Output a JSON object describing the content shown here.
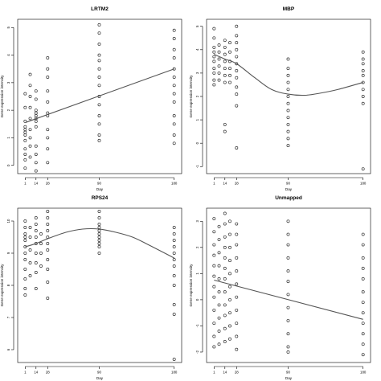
{
  "chart_data": [
    {
      "type": "scatter",
      "title": "LRTM2",
      "xlabel": "Day",
      "ylabel": "Gene expression intensity",
      "x_ticks": [
        1,
        14,
        28,
        90,
        180
      ],
      "y_ticks": [
        0,
        1,
        2,
        3,
        4,
        5
      ],
      "ylim": [
        -0.3,
        5.3
      ],
      "fit": "linear",
      "fit_points": [
        [
          1,
          1.55
        ],
        [
          180,
          3.5
        ]
      ],
      "points": [
        [
          1,
          2.6
        ],
        [
          1,
          2.1
        ],
        [
          1,
          1.6
        ],
        [
          1,
          1.4
        ],
        [
          1,
          1.3
        ],
        [
          1,
          1.2
        ],
        [
          1,
          1.1
        ],
        [
          1,
          0.9
        ],
        [
          1,
          0.6
        ],
        [
          1,
          0.4
        ],
        [
          1,
          0.2
        ],
        [
          1,
          -0.1
        ],
        [
          7,
          3.3
        ],
        [
          7,
          2.9
        ],
        [
          7,
          2.5
        ],
        [
          7,
          2.1
        ],
        [
          7,
          1.7
        ],
        [
          7,
          1.3
        ],
        [
          7,
          1.0
        ],
        [
          7,
          0.7
        ],
        [
          7,
          0.3
        ],
        [
          14,
          2.7
        ],
        [
          14,
          2.4
        ],
        [
          14,
          2.0
        ],
        [
          14,
          1.9
        ],
        [
          14,
          1.8
        ],
        [
          14,
          1.7
        ],
        [
          14,
          1.6
        ],
        [
          14,
          1.4
        ],
        [
          14,
          0.7
        ],
        [
          14,
          0.4
        ],
        [
          14,
          0.1
        ],
        [
          14,
          -0.2
        ],
        [
          28,
          3.9
        ],
        [
          28,
          3.5
        ],
        [
          28,
          3.2
        ],
        [
          28,
          2.7
        ],
        [
          28,
          2.3
        ],
        [
          28,
          1.9
        ],
        [
          28,
          1.8
        ],
        [
          28,
          1.3
        ],
        [
          28,
          1.0
        ],
        [
          28,
          0.6
        ],
        [
          28,
          0.1
        ],
        [
          90,
          5.1
        ],
        [
          90,
          4.8
        ],
        [
          90,
          4.4
        ],
        [
          90,
          4.0
        ],
        [
          90,
          3.8
        ],
        [
          90,
          3.5
        ],
        [
          90,
          3.2
        ],
        [
          90,
          2.9
        ],
        [
          90,
          2.5
        ],
        [
          90,
          2.2
        ],
        [
          90,
          1.8
        ],
        [
          90,
          1.5
        ],
        [
          90,
          1.1
        ],
        [
          90,
          0.9
        ],
        [
          180,
          4.9
        ],
        [
          180,
          4.6
        ],
        [
          180,
          4.2
        ],
        [
          180,
          3.9
        ],
        [
          180,
          3.5
        ],
        [
          180,
          3.2
        ],
        [
          180,
          2.9
        ],
        [
          180,
          2.6
        ],
        [
          180,
          2.3
        ],
        [
          180,
          1.8
        ],
        [
          180,
          1.5
        ],
        [
          180,
          1.1
        ],
        [
          180,
          0.8
        ]
      ]
    },
    {
      "type": "scatter",
      "title": "MBP",
      "xlabel": "Day",
      "ylabel": "Gene expression intensity",
      "x_ticks": [
        1,
        14,
        28,
        90,
        180
      ],
      "y_ticks": [
        -1,
        0,
        1,
        2,
        3,
        4,
        5
      ],
      "ylim": [
        -1.3,
        5.3
      ],
      "fit": "curve",
      "fit_points": [
        [
          1,
          3.8
        ],
        [
          14,
          3.6
        ],
        [
          28,
          3.4
        ],
        [
          50,
          2.8
        ],
        [
          70,
          2.3
        ],
        [
          90,
          2.1
        ],
        [
          110,
          2.05
        ],
        [
          130,
          2.15
        ],
        [
          150,
          2.3
        ],
        [
          180,
          2.6
        ]
      ],
      "points": [
        [
          1,
          4.9
        ],
        [
          1,
          4.5
        ],
        [
          1,
          4.1
        ],
        [
          1,
          3.9
        ],
        [
          1,
          3.7
        ],
        [
          1,
          3.5
        ],
        [
          1,
          3.2
        ],
        [
          1,
          3.0
        ],
        [
          1,
          2.7
        ],
        [
          1,
          2.5
        ],
        [
          7,
          4.2
        ],
        [
          7,
          3.9
        ],
        [
          7,
          3.6
        ],
        [
          7,
          3.3
        ],
        [
          7,
          3.0
        ],
        [
          7,
          2.7
        ],
        [
          14,
          4.4
        ],
        [
          14,
          4.1
        ],
        [
          14,
          3.8
        ],
        [
          14,
          3.5
        ],
        [
          14,
          3.2
        ],
        [
          14,
          2.9
        ],
        [
          14,
          2.6
        ],
        [
          14,
          0.8
        ],
        [
          14,
          0.5
        ],
        [
          20,
          4.3
        ],
        [
          20,
          3.9
        ],
        [
          20,
          3.5
        ],
        [
          20,
          3.2
        ],
        [
          20,
          2.9
        ],
        [
          20,
          2.6
        ],
        [
          28,
          5.0
        ],
        [
          28,
          4.6
        ],
        [
          28,
          4.3
        ],
        [
          28,
          4.0
        ],
        [
          28,
          3.7
        ],
        [
          28,
          3.4
        ],
        [
          28,
          3.1
        ],
        [
          28,
          2.8
        ],
        [
          28,
          2.4
        ],
        [
          28,
          2.1
        ],
        [
          28,
          1.6
        ],
        [
          28,
          -0.2
        ],
        [
          90,
          3.6
        ],
        [
          90,
          3.2
        ],
        [
          90,
          2.9
        ],
        [
          90,
          2.6
        ],
        [
          90,
          2.3
        ],
        [
          90,
          2.0
        ],
        [
          90,
          1.7
        ],
        [
          90,
          1.4
        ],
        [
          90,
          1.1
        ],
        [
          90,
          0.8
        ],
        [
          90,
          0.5
        ],
        [
          90,
          0.2
        ],
        [
          90,
          -0.1
        ],
        [
          180,
          3.9
        ],
        [
          180,
          3.6
        ],
        [
          180,
          3.4
        ],
        [
          180,
          3.1
        ],
        [
          180,
          2.9
        ],
        [
          180,
          2.6
        ],
        [
          180,
          2.3
        ],
        [
          180,
          2.0
        ],
        [
          180,
          1.7
        ],
        [
          180,
          -1.1
        ]
      ]
    },
    {
      "type": "scatter",
      "title": "RPS24",
      "xlabel": "Day",
      "ylabel": "Gene expression intensity",
      "x_ticks": [
        1,
        14,
        28,
        90,
        180
      ],
      "y_ticks": [
        6,
        7,
        8,
        9,
        10
      ],
      "ylim": [
        5.6,
        10.4
      ],
      "fit": "curve",
      "fit_points": [
        [
          1,
          9.2
        ],
        [
          14,
          9.3
        ],
        [
          28,
          9.45
        ],
        [
          50,
          9.65
        ],
        [
          70,
          9.75
        ],
        [
          90,
          9.75
        ],
        [
          110,
          9.65
        ],
        [
          130,
          9.5
        ],
        [
          150,
          9.25
        ],
        [
          180,
          8.85
        ]
      ],
      "points": [
        [
          1,
          10.0
        ],
        [
          1,
          9.8
        ],
        [
          1,
          9.6
        ],
        [
          1,
          9.5
        ],
        [
          1,
          9.4
        ],
        [
          1,
          9.2
        ],
        [
          1,
          9.0
        ],
        [
          1,
          8.8
        ],
        [
          1,
          8.5
        ],
        [
          1,
          8.2
        ],
        [
          1,
          7.9
        ],
        [
          1,
          7.7
        ],
        [
          7,
          9.8
        ],
        [
          7,
          9.5
        ],
        [
          7,
          9.1
        ],
        [
          7,
          8.7
        ],
        [
          7,
          8.3
        ],
        [
          14,
          10.1
        ],
        [
          14,
          9.9
        ],
        [
          14,
          9.7
        ],
        [
          14,
          9.5
        ],
        [
          14,
          9.3
        ],
        [
          14,
          9.0
        ],
        [
          14,
          8.7
        ],
        [
          14,
          8.4
        ],
        [
          14,
          7.9
        ],
        [
          20,
          9.6
        ],
        [
          20,
          9.3
        ],
        [
          20,
          9.0
        ],
        [
          20,
          8.6
        ],
        [
          28,
          10.3
        ],
        [
          28,
          10.1
        ],
        [
          28,
          9.9
        ],
        [
          28,
          9.7
        ],
        [
          28,
          9.5
        ],
        [
          28,
          9.3
        ],
        [
          28,
          9.1
        ],
        [
          28,
          8.8
        ],
        [
          28,
          8.5
        ],
        [
          28,
          8.1
        ],
        [
          28,
          7.6
        ],
        [
          90,
          10.3
        ],
        [
          90,
          10.1
        ],
        [
          90,
          9.9
        ],
        [
          90,
          9.8
        ],
        [
          90,
          9.7
        ],
        [
          90,
          9.6
        ],
        [
          90,
          9.5
        ],
        [
          90,
          9.4
        ],
        [
          90,
          9.3
        ],
        [
          90,
          9.2
        ],
        [
          90,
          9.0
        ],
        [
          180,
          9.8
        ],
        [
          180,
          9.6
        ],
        [
          180,
          9.4
        ],
        [
          180,
          9.2
        ],
        [
          180,
          9.0
        ],
        [
          180,
          8.8
        ],
        [
          180,
          8.6
        ],
        [
          180,
          8.3
        ],
        [
          180,
          8.0
        ],
        [
          180,
          7.4
        ],
        [
          180,
          7.1
        ],
        [
          180,
          5.7
        ]
      ]
    },
    {
      "type": "scatter",
      "title": "Unmapped",
      "xlabel": "Day",
      "ylabel": "Gene expression intensity",
      "x_ticks": [
        1,
        14,
        28,
        90,
        180
      ],
      "y_ticks": [
        -2,
        -1,
        0,
        1,
        2,
        3
      ],
      "ylim": [
        -2.4,
        3.5
      ],
      "fit": "linear",
      "fit_points": [
        [
          1,
          0.75
        ],
        [
          180,
          -0.75
        ]
      ],
      "points": [
        [
          1,
          3.1
        ],
        [
          1,
          2.6
        ],
        [
          1,
          2.1
        ],
        [
          1,
          1.7
        ],
        [
          1,
          1.3
        ],
        [
          1,
          0.9
        ],
        [
          1,
          0.5
        ],
        [
          1,
          0.1
        ],
        [
          1,
          -0.4
        ],
        [
          1,
          -0.9
        ],
        [
          1,
          -1.4
        ],
        [
          1,
          -1.8
        ],
        [
          7,
          2.8
        ],
        [
          7,
          2.3
        ],
        [
          7,
          1.8
        ],
        [
          7,
          1.3
        ],
        [
          7,
          0.8
        ],
        [
          7,
          0.3
        ],
        [
          7,
          -0.2
        ],
        [
          7,
          -0.7
        ],
        [
          7,
          -1.2
        ],
        [
          7,
          -1.7
        ],
        [
          14,
          3.3
        ],
        [
          14,
          2.9
        ],
        [
          14,
          2.4
        ],
        [
          14,
          2.0
        ],
        [
          14,
          1.6
        ],
        [
          14,
          1.2
        ],
        [
          14,
          0.8
        ],
        [
          14,
          0.3
        ],
        [
          14,
          -0.2
        ],
        [
          14,
          -0.6
        ],
        [
          14,
          -1.1
        ],
        [
          14,
          -1.6
        ],
        [
          20,
          3.0
        ],
        [
          20,
          2.5
        ],
        [
          20,
          2.0
        ],
        [
          20,
          1.5
        ],
        [
          20,
          1.0
        ],
        [
          20,
          0.5
        ],
        [
          20,
          0.0
        ],
        [
          20,
          -0.5
        ],
        [
          20,
          -1.0
        ],
        [
          20,
          -1.5
        ],
        [
          28,
          2.9
        ],
        [
          28,
          2.5
        ],
        [
          28,
          2.1
        ],
        [
          28,
          1.6
        ],
        [
          28,
          1.1
        ],
        [
          28,
          0.6
        ],
        [
          28,
          0.1
        ],
        [
          28,
          -0.4
        ],
        [
          28,
          -0.9
        ],
        [
          28,
          -1.4
        ],
        [
          28,
          -1.9
        ],
        [
          90,
          3.0
        ],
        [
          90,
          2.5
        ],
        [
          90,
          2.1
        ],
        [
          90,
          1.6
        ],
        [
          90,
          1.1
        ],
        [
          90,
          0.7
        ],
        [
          90,
          0.2
        ],
        [
          90,
          -0.3
        ],
        [
          90,
          -0.8
        ],
        [
          90,
          -1.3
        ],
        [
          90,
          -1.8
        ],
        [
          90,
          -2.0
        ],
        [
          180,
          2.5
        ],
        [
          180,
          2.1
        ],
        [
          180,
          1.6
        ],
        [
          180,
          1.2
        ],
        [
          180,
          0.8
        ],
        [
          180,
          0.3
        ],
        [
          180,
          -0.1
        ],
        [
          180,
          -0.5
        ],
        [
          180,
          -0.9
        ],
        [
          180,
          -1.3
        ],
        [
          180,
          -1.7
        ],
        [
          180,
          -2.1
        ]
      ]
    }
  ]
}
